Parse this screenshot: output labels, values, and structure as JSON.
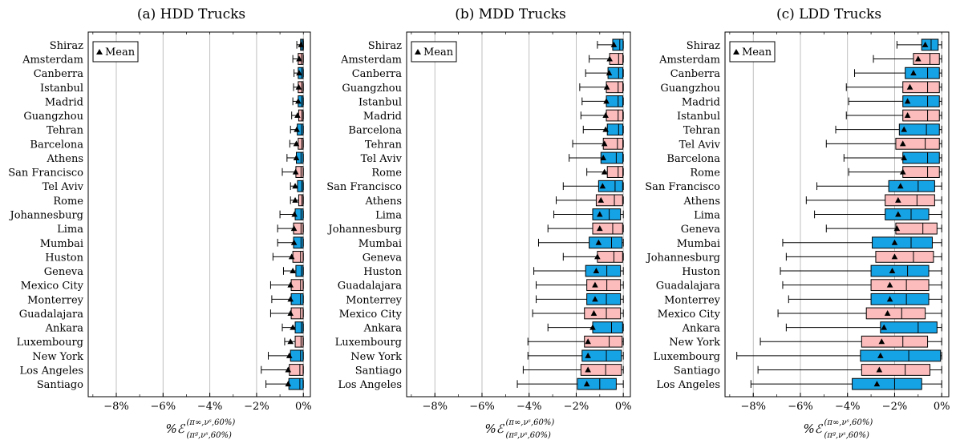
{
  "chart_data": [
    {
      "type": "box",
      "title": "(a) HDD Trucks",
      "xlabel_main": "%ℰ",
      "xlabel_sup": "(π∞,νˢ,60%)",
      "xlabel_sub": "(πᵍ,νˢ,60%)",
      "xlim": [
        -9.2,
        0.3
      ],
      "xticks": [
        -8,
        -6,
        -4,
        -2,
        0
      ],
      "xtick_labels": [
        "−8%",
        "−6%",
        "−4%",
        "−2%",
        "0%"
      ],
      "grid": true,
      "legend": {
        "position": "top-left",
        "label": "Mean"
      },
      "series": [
        {
          "city": "Shiraz",
          "min": -0.28,
          "q1": -0.12,
          "median": -0.05,
          "q3": 0.0,
          "max": 0.0,
          "mean": -0.1,
          "color": "blue"
        },
        {
          "city": "Amsterdam",
          "min": -0.45,
          "q1": -0.22,
          "median": -0.08,
          "q3": -0.01,
          "max": 0.0,
          "mean": -0.18,
          "color": "pink"
        },
        {
          "city": "Canberra",
          "min": -0.4,
          "q1": -0.22,
          "median": -0.07,
          "q3": -0.01,
          "max": 0.0,
          "mean": -0.18,
          "color": "blue"
        },
        {
          "city": "Istanbul",
          "min": -0.42,
          "q1": -0.22,
          "median": -0.07,
          "q3": -0.01,
          "max": 0.0,
          "mean": -0.2,
          "color": "pink"
        },
        {
          "city": "Madrid",
          "min": -0.45,
          "q1": -0.22,
          "median": -0.07,
          "q3": -0.01,
          "max": 0.0,
          "mean": -0.22,
          "color": "blue"
        },
        {
          "city": "Guangzhou",
          "min": -0.5,
          "q1": -0.2,
          "median": -0.06,
          "q3": -0.01,
          "max": 0.0,
          "mean": -0.25,
          "color": "pink"
        },
        {
          "city": "Tehran",
          "min": -0.55,
          "q1": -0.26,
          "median": -0.08,
          "q3": -0.01,
          "max": 0.0,
          "mean": -0.28,
          "color": "blue"
        },
        {
          "city": "Barcelona",
          "min": -0.58,
          "q1": -0.22,
          "median": -0.07,
          "q3": -0.01,
          "max": 0.0,
          "mean": -0.3,
          "color": "pink"
        },
        {
          "city": "Athens",
          "min": -0.7,
          "q1": -0.3,
          "median": -0.1,
          "q3": -0.01,
          "max": 0.0,
          "mean": -0.3,
          "color": "blue"
        },
        {
          "city": "San Francisco",
          "min": -0.9,
          "q1": -0.32,
          "median": -0.1,
          "q3": -0.01,
          "max": 0.0,
          "mean": -0.33,
          "color": "pink"
        },
        {
          "city": "Tel Aviv",
          "min": -0.55,
          "q1": -0.25,
          "median": -0.07,
          "q3": -0.01,
          "max": 0.0,
          "mean": -0.35,
          "color": "blue"
        },
        {
          "city": "Rome",
          "min": -0.55,
          "q1": -0.2,
          "median": -0.06,
          "q3": -0.01,
          "max": 0.0,
          "mean": -0.35,
          "color": "pink"
        },
        {
          "city": "Johannesburg",
          "min": -1.0,
          "q1": -0.35,
          "median": -0.1,
          "q3": -0.01,
          "max": 0.0,
          "mean": -0.38,
          "color": "blue"
        },
        {
          "city": "Lima",
          "min": -1.1,
          "q1": -0.42,
          "median": -0.1,
          "q3": -0.01,
          "max": 0.0,
          "mean": -0.4,
          "color": "pink"
        },
        {
          "city": "Mumbai",
          "min": -1.1,
          "q1": -0.42,
          "median": -0.1,
          "q3": -0.01,
          "max": 0.0,
          "mean": -0.4,
          "color": "blue"
        },
        {
          "city": "Huston",
          "min": -1.3,
          "q1": -0.45,
          "median": -0.12,
          "q3": -0.01,
          "max": 0.0,
          "mean": -0.5,
          "color": "pink"
        },
        {
          "city": "Geneva",
          "min": -0.85,
          "q1": -0.32,
          "median": -0.08,
          "q3": -0.01,
          "max": 0.0,
          "mean": -0.45,
          "color": "blue"
        },
        {
          "city": "Mexico City",
          "min": -1.4,
          "q1": -0.52,
          "median": -0.12,
          "q3": -0.01,
          "max": 0.0,
          "mean": -0.55,
          "color": "pink"
        },
        {
          "city": "Monterrey",
          "min": -1.35,
          "q1": -0.52,
          "median": -0.12,
          "q3": -0.01,
          "max": 0.0,
          "mean": -0.55,
          "color": "blue"
        },
        {
          "city": "Guadalajara",
          "min": -1.4,
          "q1": -0.52,
          "median": -0.12,
          "q3": -0.01,
          "max": 0.0,
          "mean": -0.55,
          "color": "pink"
        },
        {
          "city": "Ankara",
          "min": -0.9,
          "q1": -0.35,
          "median": -0.08,
          "q3": -0.01,
          "max": 0.0,
          "mean": -0.45,
          "color": "blue"
        },
        {
          "city": "Luxembourg",
          "min": -0.8,
          "q1": -0.35,
          "median": -0.1,
          "q3": -0.01,
          "max": 0.0,
          "mean": -0.55,
          "color": "pink"
        },
        {
          "city": "New York",
          "min": -1.5,
          "q1": -0.55,
          "median": -0.12,
          "q3": -0.01,
          "max": 0.0,
          "mean": -0.6,
          "color": "blue"
        },
        {
          "city": "Los Angeles",
          "min": -1.8,
          "q1": -0.6,
          "median": -0.15,
          "q3": -0.01,
          "max": 0.0,
          "mean": -0.65,
          "color": "pink"
        },
        {
          "city": "Santiago",
          "min": -1.6,
          "q1": -0.62,
          "median": -0.15,
          "q3": -0.01,
          "max": 0.0,
          "mean": -0.65,
          "color": "blue"
        }
      ]
    },
    {
      "type": "box",
      "title": "(b) MDD Trucks",
      "xlabel_main": "%ℰ",
      "xlabel_sup": "(π∞,νˢ,60%)",
      "xlabel_sub": "(πᵍ,νˢ,60%)",
      "xlim": [
        -9.2,
        0.3
      ],
      "xticks": [
        -8,
        -6,
        -4,
        -2,
        0
      ],
      "xtick_labels": [
        "−8%",
        "−6%",
        "−4%",
        "−2%",
        "0%"
      ],
      "grid": true,
      "legend": {
        "position": "top-left",
        "label": "Mean"
      },
      "series": [
        {
          "city": "Shiraz",
          "min": -1.1,
          "q1": -0.45,
          "median": -0.15,
          "q3": -0.01,
          "max": 0.0,
          "mean": -0.4,
          "color": "blue"
        },
        {
          "city": "Amsterdam",
          "min": -1.45,
          "q1": -0.58,
          "median": -0.2,
          "q3": -0.02,
          "max": 0.0,
          "mean": -0.58,
          "color": "pink"
        },
        {
          "city": "Canberra",
          "min": -1.6,
          "q1": -0.65,
          "median": -0.2,
          "q3": -0.02,
          "max": 0.0,
          "mean": -0.6,
          "color": "blue"
        },
        {
          "city": "Guangzhou",
          "min": -1.85,
          "q1": -0.72,
          "median": -0.22,
          "q3": -0.02,
          "max": 0.0,
          "mean": -0.7,
          "color": "pink"
        },
        {
          "city": "Istanbul",
          "min": -1.75,
          "q1": -0.72,
          "median": -0.22,
          "q3": -0.02,
          "max": 0.0,
          "mean": -0.72,
          "color": "blue"
        },
        {
          "city": "Madrid",
          "min": -1.8,
          "q1": -0.72,
          "median": -0.22,
          "q3": -0.02,
          "max": 0.0,
          "mean": -0.75,
          "color": "pink"
        },
        {
          "city": "Barcelona",
          "min": -1.7,
          "q1": -0.68,
          "median": -0.2,
          "q3": -0.02,
          "max": 0.0,
          "mean": -0.75,
          "color": "blue"
        },
        {
          "city": "Tehran",
          "min": -2.15,
          "q1": -0.85,
          "median": -0.25,
          "q3": -0.02,
          "max": 0.0,
          "mean": -0.8,
          "color": "pink"
        },
        {
          "city": "Tel Aviv",
          "min": -2.3,
          "q1": -0.95,
          "median": -0.3,
          "q3": -0.02,
          "max": 0.0,
          "mean": -0.85,
          "color": "blue"
        },
        {
          "city": "Rome",
          "min": -1.55,
          "q1": -0.68,
          "median": -0.22,
          "q3": -0.02,
          "max": 0.0,
          "mean": -0.8,
          "color": "pink"
        },
        {
          "city": "San Francisco",
          "min": -2.55,
          "q1": -1.05,
          "median": -0.35,
          "q3": -0.03,
          "max": 0.0,
          "mean": -0.88,
          "color": "blue"
        },
        {
          "city": "Athens",
          "min": -2.85,
          "q1": -1.15,
          "median": -0.38,
          "q3": -0.03,
          "max": 0.0,
          "mean": -0.95,
          "color": "pink"
        },
        {
          "city": "Lima",
          "min": -2.95,
          "q1": -1.3,
          "median": -0.6,
          "q3": -0.12,
          "max": 0.0,
          "mean": -1.0,
          "color": "blue"
        },
        {
          "city": "Johannesburg",
          "min": -3.2,
          "q1": -1.3,
          "median": -0.45,
          "q3": -0.03,
          "max": 0.0,
          "mean": -1.0,
          "color": "pink"
        },
        {
          "city": "Mumbai",
          "min": -3.6,
          "q1": -1.45,
          "median": -0.5,
          "q3": -0.05,
          "max": 0.0,
          "mean": -1.05,
          "color": "blue"
        },
        {
          "city": "Geneva",
          "min": -2.55,
          "q1": -1.1,
          "median": -0.4,
          "q3": -0.03,
          "max": 0.0,
          "mean": -1.1,
          "color": "pink"
        },
        {
          "city": "Huston",
          "min": -3.8,
          "q1": -1.6,
          "median": -0.7,
          "q3": -0.12,
          "max": 0.0,
          "mean": -1.15,
          "color": "blue"
        },
        {
          "city": "Guadalajara",
          "min": -3.7,
          "q1": -1.55,
          "median": -0.7,
          "q3": -0.12,
          "max": 0.0,
          "mean": -1.2,
          "color": "pink"
        },
        {
          "city": "Monterrey",
          "min": -3.7,
          "q1": -1.55,
          "median": -0.72,
          "q3": -0.12,
          "max": 0.0,
          "mean": -1.2,
          "color": "blue"
        },
        {
          "city": "Mexico City",
          "min": -3.85,
          "q1": -1.65,
          "median": -0.72,
          "q3": -0.12,
          "max": 0.0,
          "mean": -1.25,
          "color": "pink"
        },
        {
          "city": "Ankara",
          "min": -3.2,
          "q1": -1.3,
          "median": -0.5,
          "q3": -0.03,
          "max": 0.0,
          "mean": -1.3,
          "color": "blue"
        },
        {
          "city": "Luxembourg",
          "min": -4.05,
          "q1": -1.65,
          "median": -0.6,
          "q3": -0.05,
          "max": 0.0,
          "mean": -1.5,
          "color": "pink"
        },
        {
          "city": "New York",
          "min": -4.05,
          "q1": -1.75,
          "median": -0.72,
          "q3": -0.08,
          "max": 0.0,
          "mean": -1.5,
          "color": "blue"
        },
        {
          "city": "Santiago",
          "min": -4.25,
          "q1": -1.8,
          "median": -0.75,
          "q3": -0.08,
          "max": 0.0,
          "mean": -1.5,
          "color": "pink"
        },
        {
          "city": "Los Angeles",
          "min": -4.5,
          "q1": -1.95,
          "median": -1.0,
          "q3": -0.3,
          "max": 0.0,
          "mean": -1.55,
          "color": "blue"
        }
      ]
    },
    {
      "type": "box",
      "title": "(c) LDD Trucks",
      "xlabel_main": "%ℰ",
      "xlabel_sup": "(π∞,νˢ,60%)",
      "xlabel_sub": "(πᵍ,νˢ,60%)",
      "xlim": [
        -9.2,
        0.3
      ],
      "xticks": [
        -8,
        -6,
        -4,
        -2,
        0
      ],
      "xtick_labels": [
        "−8%",
        "−6%",
        "−4%",
        "−2%",
        "0%"
      ],
      "grid": true,
      "legend": {
        "position": "top-left",
        "label": "Mean"
      },
      "series": [
        {
          "city": "Shiraz",
          "min": -1.9,
          "q1": -0.85,
          "median": -0.45,
          "q3": -0.15,
          "max": 0.0,
          "mean": -0.7,
          "color": "blue"
        },
        {
          "city": "Amsterdam",
          "min": -2.9,
          "q1": -1.2,
          "median": -0.5,
          "q3": -0.1,
          "max": 0.0,
          "mean": -1.0,
          "color": "pink"
        },
        {
          "city": "Canberra",
          "min": -3.7,
          "q1": -1.55,
          "median": -0.6,
          "q3": -0.1,
          "max": 0.0,
          "mean": -1.2,
          "color": "blue"
        },
        {
          "city": "Guangzhou",
          "min": -4.05,
          "q1": -1.65,
          "median": -0.6,
          "q3": -0.1,
          "max": 0.0,
          "mean": -1.35,
          "color": "pink"
        },
        {
          "city": "Madrid",
          "min": -3.95,
          "q1": -1.65,
          "median": -0.6,
          "q3": -0.1,
          "max": 0.0,
          "mean": -1.45,
          "color": "blue"
        },
        {
          "city": "Istanbul",
          "min": -4.05,
          "q1": -1.65,
          "median": -0.6,
          "q3": -0.1,
          "max": 0.0,
          "mean": -1.45,
          "color": "pink"
        },
        {
          "city": "Tehran",
          "min": -4.5,
          "q1": -1.8,
          "median": -0.65,
          "q3": -0.1,
          "max": 0.0,
          "mean": -1.6,
          "color": "blue"
        },
        {
          "city": "Tel Aviv",
          "min": -4.9,
          "q1": -1.95,
          "median": -0.7,
          "q3": -0.1,
          "max": 0.0,
          "mean": -1.65,
          "color": "pink"
        },
        {
          "city": "Barcelona",
          "min": -4.15,
          "q1": -1.65,
          "median": -0.6,
          "q3": -0.1,
          "max": 0.0,
          "mean": -1.6,
          "color": "blue"
        },
        {
          "city": "Rome",
          "min": -3.95,
          "q1": -1.65,
          "median": -0.6,
          "q3": -0.1,
          "max": 0.0,
          "mean": -1.65,
          "color": "pink"
        },
        {
          "city": "San Francisco",
          "min": -5.3,
          "q1": -2.25,
          "median": -1.0,
          "q3": -0.3,
          "max": 0.0,
          "mean": -1.75,
          "color": "blue"
        },
        {
          "city": "Athens",
          "min": -5.75,
          "q1": -2.4,
          "median": -1.05,
          "q3": -0.3,
          "max": 0.0,
          "mean": -1.85,
          "color": "pink"
        },
        {
          "city": "Lima",
          "min": -5.4,
          "q1": -2.4,
          "median": -1.3,
          "q3": -0.55,
          "max": 0.0,
          "mean": -1.85,
          "color": "blue"
        },
        {
          "city": "Geneva",
          "min": -4.9,
          "q1": -1.95,
          "median": -0.8,
          "q3": -0.2,
          "max": 0.0,
          "mean": -1.9,
          "color": "pink"
        },
        {
          "city": "Mumbai",
          "min": -6.75,
          "q1": -2.95,
          "median": -1.3,
          "q3": -0.4,
          "max": 0.0,
          "mean": -2.0,
          "color": "blue"
        },
        {
          "city": "Johannesburg",
          "min": -6.6,
          "q1": -2.8,
          "median": -1.2,
          "q3": -0.35,
          "max": 0.0,
          "mean": -2.0,
          "color": "pink"
        },
        {
          "city": "Huston",
          "min": -6.85,
          "q1": -3.0,
          "median": -1.45,
          "q3": -0.55,
          "max": 0.0,
          "mean": -2.1,
          "color": "blue"
        },
        {
          "city": "Guadalajara",
          "min": -6.75,
          "q1": -3.0,
          "median": -1.5,
          "q3": -0.55,
          "max": 0.0,
          "mean": -2.2,
          "color": "pink"
        },
        {
          "city": "Monterrey",
          "min": -6.5,
          "q1": -3.0,
          "median": -1.5,
          "q3": -0.55,
          "max": 0.0,
          "mean": -2.2,
          "color": "blue"
        },
        {
          "city": "Mexico City",
          "min": -6.95,
          "q1": -3.2,
          "median": -1.7,
          "q3": -0.7,
          "max": 0.0,
          "mean": -2.3,
          "color": "pink"
        },
        {
          "city": "Ankara",
          "min": -6.6,
          "q1": -2.6,
          "median": -1.0,
          "q3": -0.2,
          "max": 0.0,
          "mean": -2.45,
          "color": "blue"
        },
        {
          "city": "New York",
          "min": -7.7,
          "q1": -3.4,
          "median": -1.65,
          "q3": -0.6,
          "max": 0.0,
          "mean": -2.55,
          "color": "pink"
        },
        {
          "city": "Luxembourg",
          "min": -8.7,
          "q1": -3.45,
          "median": -1.4,
          "q3": -0.05,
          "max": 0.0,
          "mean": -2.6,
          "color": "blue"
        },
        {
          "city": "Santiago",
          "min": -7.8,
          "q1": -3.4,
          "median": -1.55,
          "q3": -0.5,
          "max": 0.0,
          "mean": -2.65,
          "color": "pink"
        },
        {
          "city": "Los Angeles",
          "min": -8.1,
          "q1": -3.8,
          "median": -2.0,
          "q3": -0.85,
          "max": 0.0,
          "mean": -2.75,
          "color": "blue"
        }
      ]
    }
  ],
  "colors": {
    "blue": "#16a3e6",
    "pink": "#fcbcbc",
    "grid": "#b8b8b8"
  }
}
